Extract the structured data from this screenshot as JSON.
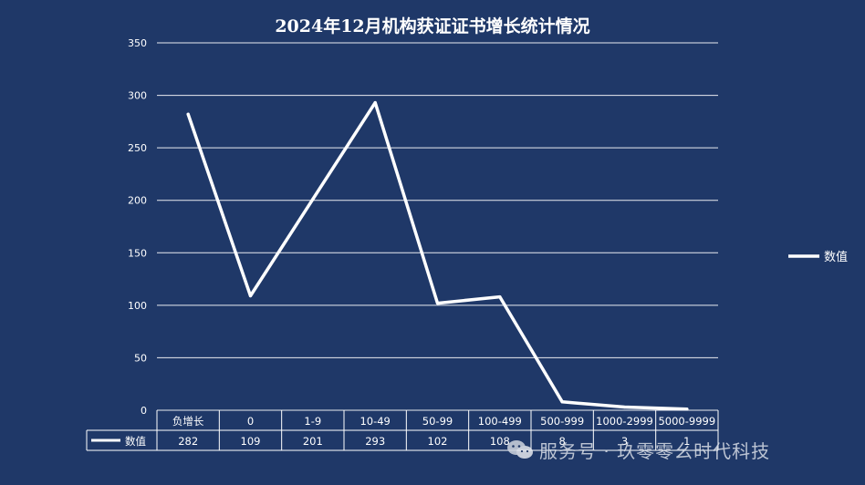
{
  "chart_data": {
    "type": "line",
    "title": "2024年12月机构获证证书增长统计情况",
    "categories": [
      "负增长",
      "0",
      "1-9",
      "10-49",
      "50-99",
      "100-499",
      "500-999",
      "1000-2999",
      "5000-9999"
    ],
    "series": [
      {
        "name": "数值",
        "values": [
          282,
          109,
          201,
          293,
          102,
          108,
          8,
          3,
          1
        ]
      }
    ],
    "yticks": [
      "0",
      "50",
      "100",
      "150",
      "200",
      "250",
      "300",
      "350"
    ],
    "ylim": [
      0,
      350
    ],
    "grid": true,
    "legend_position": "right",
    "data_table": true,
    "colors": {
      "background": "#1f3868",
      "line": "#ffffff",
      "grid": "#ffffff"
    }
  },
  "watermark": {
    "icon": "wechat-icon",
    "text": "服务号 · 玖零零幺时代科技"
  }
}
